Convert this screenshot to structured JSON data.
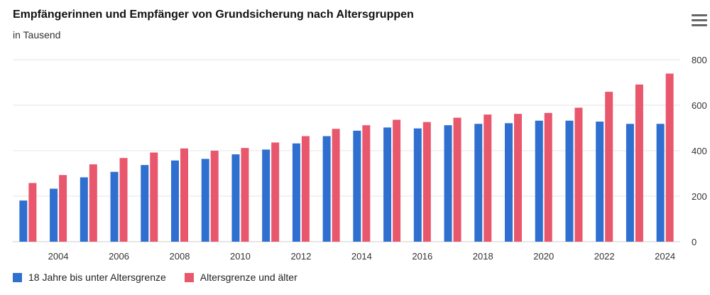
{
  "header": {
    "title": "Empfängerinnen und Empfänger von Grundsicherung nach Altersgruppen",
    "subtitle": "in Tausend",
    "menu_icon": "hamburger-menu-icon"
  },
  "colors": {
    "series_1": "#2e6fcf",
    "series_2": "#e9576d",
    "grid": "#e6e6e6",
    "axis": "#cccccc"
  },
  "chart_data": {
    "type": "bar",
    "title": "Empfängerinnen und Empfänger von Grundsicherung nach Altersgruppen",
    "subtitle": "in Tausend",
    "xlabel": "",
    "ylabel": "",
    "ylim": [
      0,
      800
    ],
    "yticks": [
      0,
      200,
      400,
      600,
      800
    ],
    "y_axis_position": "right",
    "grid": true,
    "legend_position": "bottom-left",
    "categories": [
      "2003",
      "2004",
      "2005",
      "2006",
      "2007",
      "2008",
      "2009",
      "2010",
      "2011",
      "2012",
      "2013",
      "2014",
      "2015",
      "2016",
      "2017",
      "2018",
      "2019",
      "2020",
      "2021",
      "2022",
      "2023",
      "2024"
    ],
    "xtick_labels": [
      "2004",
      "2006",
      "2008",
      "2010",
      "2012",
      "2014",
      "2016",
      "2018",
      "2020",
      "2022",
      "2024"
    ],
    "series": [
      {
        "name": "18 Jahre bis unter Altersgrenze",
        "values": [
          181,
          233,
          283,
          307,
          337,
          357,
          364,
          384,
          405,
          432,
          464,
          488,
          502,
          498,
          512,
          518,
          521,
          532,
          532,
          528,
          518,
          518
        ]
      },
      {
        "name": "Altersgrenze und älter",
        "values": [
          258,
          293,
          340,
          368,
          392,
          410,
          400,
          412,
          436,
          464,
          496,
          512,
          536,
          526,
          545,
          559,
          562,
          566,
          589,
          659,
          691,
          739
        ]
      }
    ]
  }
}
